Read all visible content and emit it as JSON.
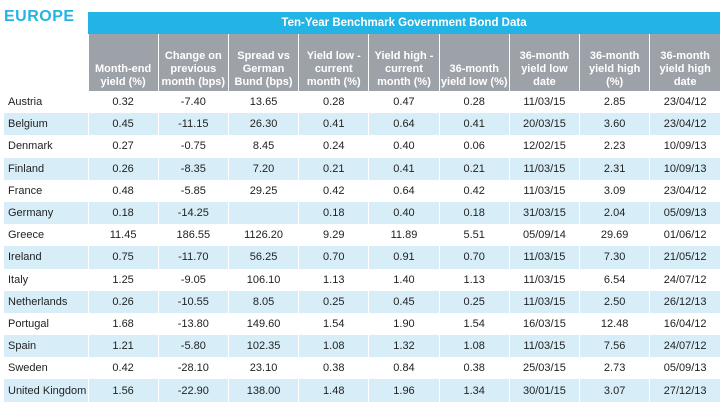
{
  "region": "EUROPE",
  "table_title": "Ten-Year Benchmark Government Bond Data",
  "columns": [
    "Month-end yield (%)",
    "Change on previous month (bps)",
    "Spread vs German Bund (bps)",
    "Yield low - current month (%)",
    "Yield high - current month (%)",
    "36-month yield low (%)",
    "36-month yield low date",
    "36-month yield high (%)",
    "36-month yield high date"
  ],
  "rows": [
    {
      "country": "Austria",
      "cells": [
        "0.32",
        "-7.40",
        "13.65",
        "0.28",
        "0.47",
        "0.28",
        "11/03/15",
        "2.85",
        "23/04/12"
      ]
    },
    {
      "country": "Belgium",
      "cells": [
        "0.45",
        "-11.15",
        "26.30",
        "0.41",
        "0.64",
        "0.41",
        "20/03/15",
        "3.60",
        "23/04/12"
      ]
    },
    {
      "country": "Denmark",
      "cells": [
        "0.27",
        "-0.75",
        "8.45",
        "0.24",
        "0.40",
        "0.06",
        "12/02/15",
        "2.23",
        "10/09/13"
      ]
    },
    {
      "country": "Finland",
      "cells": [
        "0.26",
        "-8.35",
        "7.20",
        "0.21",
        "0.41",
        "0.21",
        "11/03/15",
        "2.31",
        "10/09/13"
      ]
    },
    {
      "country": "France",
      "cells": [
        "0.48",
        "-5.85",
        "29.25",
        "0.42",
        "0.64",
        "0.42",
        "11/03/15",
        "3.09",
        "23/04/12"
      ]
    },
    {
      "country": "Germany",
      "cells": [
        "0.18",
        "-14.25",
        "",
        "0.18",
        "0.40",
        "0.18",
        "31/03/15",
        "2.04",
        "05/09/13"
      ]
    },
    {
      "country": "Greece",
      "cells": [
        "11.45",
        "186.55",
        "1126.20",
        "9.29",
        "11.89",
        "5.51",
        "05/09/14",
        "29.69",
        "01/06/12"
      ]
    },
    {
      "country": "Ireland",
      "cells": [
        "0.75",
        "-11.70",
        "56.25",
        "0.70",
        "0.91",
        "0.70",
        "11/03/15",
        "7.30",
        "21/05/12"
      ]
    },
    {
      "country": "Italy",
      "cells": [
        "1.25",
        "-9.05",
        "106.10",
        "1.13",
        "1.40",
        "1.13",
        "11/03/15",
        "6.54",
        "24/07/12"
      ]
    },
    {
      "country": "Netherlands",
      "cells": [
        "0.26",
        "-10.55",
        "8.05",
        "0.25",
        "0.45",
        "0.25",
        "11/03/15",
        "2.50",
        "26/12/13"
      ]
    },
    {
      "country": "Portugal",
      "cells": [
        "1.68",
        "-13.80",
        "149.60",
        "1.54",
        "1.90",
        "1.54",
        "16/03/15",
        "12.48",
        "16/04/12"
      ]
    },
    {
      "country": "Spain",
      "cells": [
        "1.21",
        "-5.80",
        "102.35",
        "1.08",
        "1.32",
        "1.08",
        "11/03/15",
        "7.56",
        "24/07/12"
      ]
    },
    {
      "country": "Sweden",
      "cells": [
        "0.42",
        "-28.10",
        "23.10",
        "0.38",
        "0.84",
        "0.38",
        "25/03/15",
        "2.73",
        "05/09/13"
      ]
    },
    {
      "country": "United Kingdom",
      "cells": [
        "1.56",
        "-22.90",
        "138.00",
        "1.48",
        "1.96",
        "1.34",
        "30/01/15",
        "3.07",
        "27/12/13"
      ]
    }
  ]
}
